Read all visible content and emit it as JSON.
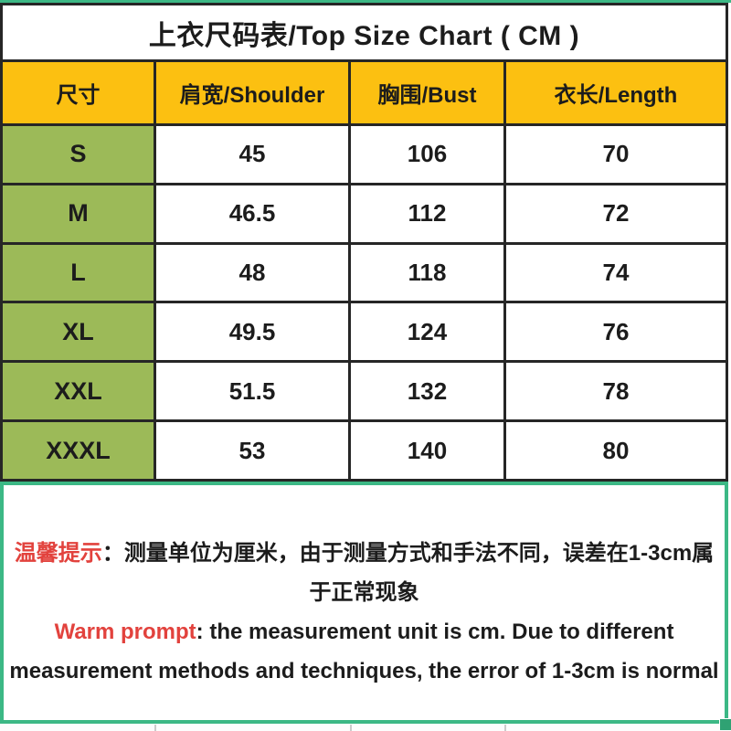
{
  "title": "上衣尺码表/Top Size Chart ( CM )",
  "table": {
    "headers": [
      "尺寸",
      "肩宽/Shoulder",
      "胸围/Bust",
      "衣长/Length"
    ],
    "rows": [
      {
        "size": "S",
        "shoulder": "45",
        "bust": "106",
        "length": "70"
      },
      {
        "size": "M",
        "shoulder": "46.5",
        "bust": "112",
        "length": "72"
      },
      {
        "size": "L",
        "shoulder": "48",
        "bust": "118",
        "length": "74"
      },
      {
        "size": "XL",
        "shoulder": "49.5",
        "bust": "124",
        "length": "76"
      },
      {
        "size": "XXL",
        "shoulder": "51.5",
        "bust": "132",
        "length": "78"
      },
      {
        "size": "XXXL",
        "shoulder": "53",
        "bust": "140",
        "length": "80"
      }
    ]
  },
  "notes": {
    "cn_label": "温馨提示",
    "cn_colon": "：",
    "cn_text": "测量单位为厘米，由于测量方式和手法不同，误差在1-3cm属于正常现象",
    "en_label": "Warm prompt",
    "en_colon": ": ",
    "en_text": "the measurement unit is cm. Due to different measurement methods and techniques, the error of 1-3cm is normal"
  },
  "colors": {
    "header_yellow": "#fcc011",
    "size_green": "#9cba58",
    "selection_green": "#3cb885",
    "warning_red": "#e2423d",
    "border_black": "#262626"
  }
}
